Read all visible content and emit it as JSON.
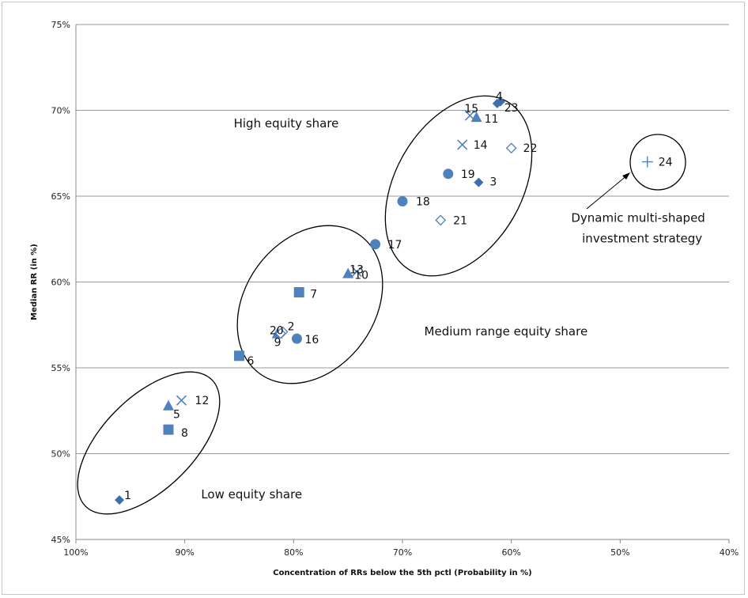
{
  "chart_data": {
    "type": "scatter",
    "title": "",
    "xlabel": "Concentration of RRs below the 5th pctl (Probability in %)",
    "ylabel": "Median RR (in %)",
    "xlim": [
      100,
      40
    ],
    "ylim": [
      45,
      75
    ],
    "x_reversed": true,
    "x_ticks": [
      100,
      90,
      80,
      70,
      60,
      50,
      40
    ],
    "x_tick_labels": [
      "100%",
      "90%",
      "80%",
      "70%",
      "60%",
      "50%",
      "40%"
    ],
    "y_ticks": [
      45,
      50,
      55,
      60,
      65,
      70,
      75
    ],
    "y_tick_labels": [
      "45%",
      "50%",
      "55%",
      "60%",
      "65%",
      "70%",
      "75%"
    ],
    "grid": "horizontal",
    "legend": "none",
    "colors": {
      "marker": "#4f81bd",
      "marker_dark": "#3d6fae",
      "ellipse": "#000000",
      "grid": "#9a9a9a"
    },
    "points": [
      {
        "label": "1",
        "x": 96.0,
        "y": 47.3,
        "marker": "diamond"
      },
      {
        "label": "2",
        "x": 81.0,
        "y": 57.1,
        "marker": "diamond-open"
      },
      {
        "label": "3",
        "x": 63.0,
        "y": 65.8,
        "marker": "diamond"
      },
      {
        "label": "4",
        "x": 61.0,
        "y": 70.5,
        "marker": "diamond"
      },
      {
        "label": "5",
        "x": 91.5,
        "y": 52.8,
        "marker": "triangle"
      },
      {
        "label": "6",
        "x": 85.0,
        "y": 55.7,
        "marker": "square"
      },
      {
        "label": "7",
        "x": 79.5,
        "y": 59.4,
        "marker": "square"
      },
      {
        "label": "8",
        "x": 91.5,
        "y": 51.4,
        "marker": "square"
      },
      {
        "label": "9",
        "x": 81.5,
        "y": 57.0,
        "marker": "triangle"
      },
      {
        "label": "10",
        "x": 75.0,
        "y": 60.5,
        "marker": "triangle"
      },
      {
        "label": "11",
        "x": 63.2,
        "y": 69.6,
        "marker": "triangle"
      },
      {
        "label": "12",
        "x": 90.3,
        "y": 53.1,
        "marker": "x"
      },
      {
        "label": "13",
        "x": 74.2,
        "y": 60.6,
        "marker": "x"
      },
      {
        "label": "14",
        "x": 64.5,
        "y": 68.0,
        "marker": "x"
      },
      {
        "label": "15",
        "x": 63.8,
        "y": 69.7,
        "marker": "x"
      },
      {
        "label": "16",
        "x": 79.7,
        "y": 56.7,
        "marker": "circle"
      },
      {
        "label": "17",
        "x": 72.5,
        "y": 62.2,
        "marker": "circle"
      },
      {
        "label": "18",
        "x": 70.0,
        "y": 64.7,
        "marker": "circle"
      },
      {
        "label": "19",
        "x": 65.8,
        "y": 66.3,
        "marker": "circle"
      },
      {
        "label": "20",
        "x": 81.2,
        "y": 57.0,
        "marker": "diamond-open"
      },
      {
        "label": "21",
        "x": 66.5,
        "y": 63.6,
        "marker": "diamond-open"
      },
      {
        "label": "22",
        "x": 60.0,
        "y": 67.8,
        "marker": "diamond-open"
      },
      {
        "label": "23",
        "x": 61.3,
        "y": 70.4,
        "marker": "diamond"
      },
      {
        "label": "24",
        "x": 47.5,
        "y": 67.0,
        "marker": "plus"
      }
    ],
    "annotations": [
      {
        "text": "High equity share",
        "x": 85.5,
        "y": 69.0
      },
      {
        "text": "Medium range equity share",
        "x": 68.0,
        "y": 56.9
      },
      {
        "text": "Low equity share",
        "x": 88.5,
        "y": 47.4
      },
      {
        "text": "Dynamic multi-shaped",
        "x": 54.5,
        "y": 63.5
      },
      {
        "text": "investment strategy",
        "x": 53.5,
        "y": 62.3
      }
    ]
  }
}
